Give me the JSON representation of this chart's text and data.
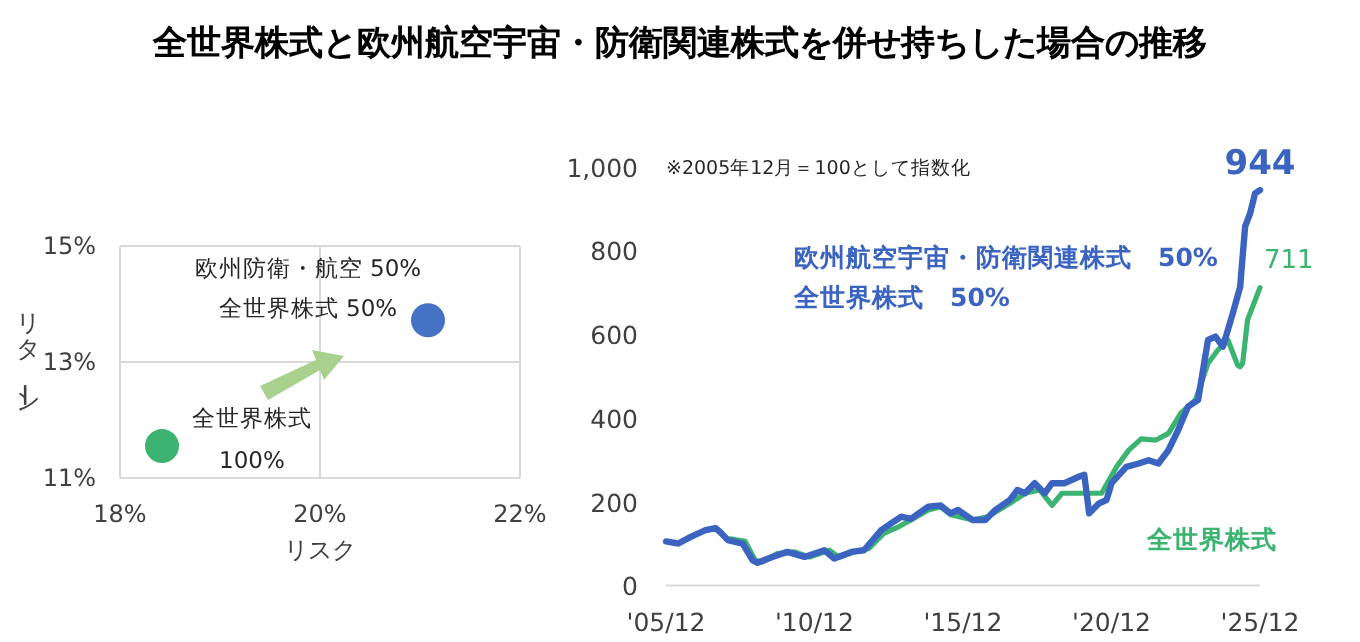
{
  "chart_data": [
    {
      "type": "scatter",
      "title": "全世界株式と欧州航空宇宙・防衛関連株式を併せ持ちした場合の推移",
      "xlabel": "リスク",
      "ylabel": "リターン",
      "xlim": [
        18,
        22
      ],
      "xticks": [
        {
          "value": 18,
          "label": "18%"
        },
        {
          "value": 20,
          "label": "20%"
        },
        {
          "value": 22,
          "label": "22%"
        }
      ],
      "ylim": [
        11,
        15
      ],
      "yticks": [
        {
          "value": 11,
          "label": "11%"
        },
        {
          "value": 13,
          "label": "13%"
        },
        {
          "value": 15,
          "label": "15%"
        }
      ],
      "grid": true,
      "marker": "circle",
      "series": [
        {
          "name": "欧州防衛・航空 50%\n全世界株式 50%",
          "color": "#4472c4",
          "x": [
            21.08
          ],
          "values": [
            13.72
          ]
        },
        {
          "name": "全世界株式\n100%",
          "color": "#3cb371",
          "x": [
            18.42
          ],
          "values": [
            11.55
          ]
        }
      ]
    },
    {
      "type": "line",
      "xlim": [
        "2005-12",
        "2025-12"
      ],
      "xticks": [
        {
          "value": "2005-12",
          "label": "'05/12"
        },
        {
          "value": "2010-12",
          "label": "'10/12"
        },
        {
          "value": "2015-12",
          "label": "'15/12"
        },
        {
          "value": "2020-12",
          "label": "'20/12"
        },
        {
          "value": "2025-12",
          "label": "'25/12"
        }
      ],
      "ylim": [
        0,
        1000
      ],
      "yticks": [
        0,
        200,
        400,
        600,
        800,
        {
          "value": 1000,
          "label": "1,000"
        }
      ],
      "annotations": [
        "※2005年12月＝100として指数化"
      ],
      "series": [
        {
          "name": "欧州航空宇宙・防衛関連株式　50%\n全世界株式　50%",
          "color": "#3a64c0",
          "x": [
            "2005-12",
            "2006-05",
            "2006-10",
            "2007-04",
            "2007-08",
            "2007-10",
            "2008-01",
            "2008-07",
            "2008-11",
            "2009-01",
            "2009-07",
            "2010-01",
            "2010-08",
            "2011-04",
            "2011-08",
            "2012-03",
            "2012-08",
            "2013-03",
            "2013-07",
            "2013-11",
            "2014-03",
            "2014-10",
            "2015-03",
            "2015-07",
            "2015-10",
            "2016-04",
            "2016-09",
            "2017-01",
            "2017-07",
            "2017-10",
            "2018-01",
            "2018-05",
            "2018-09",
            "2018-12",
            "2019-05",
            "2019-11",
            "2020-01",
            "2020-03",
            "2020-07",
            "2020-10",
            "2020-12",
            "2021-06",
            "2021-11",
            "2022-03",
            "2022-07",
            "2022-11",
            "2023-03",
            "2023-07",
            "2023-11",
            "2024-03",
            "2024-06",
            "2024-09",
            "2025-01",
            "2025-04",
            "2025-06",
            "2025-08",
            "2025-10",
            "2025-12"
          ],
          "values": [
            105,
            100,
            116,
            132,
            137,
            127,
            108,
            100,
            60,
            54,
            68,
            80,
            68,
            84,
            64,
            80,
            84,
            132,
            148,
            164,
            159,
            188,
            191,
            172,
            180,
            156,
            156,
            180,
            204,
            228,
            220,
            244,
            220,
            244,
            244,
            260,
            264,
            172,
            196,
            204,
            244,
            283,
            291,
            299,
            291,
            323,
            371,
            427,
            443,
            586,
            594,
            570,
            650,
            713,
            857,
            888,
            936,
            944
          ],
          "value_labels": [
            null,
            null,
            null,
            null,
            null,
            null,
            null,
            null,
            null,
            null,
            null,
            null,
            null,
            null,
            null,
            null,
            null,
            null,
            null,
            null,
            null,
            null,
            null,
            null,
            null,
            null,
            null,
            null,
            null,
            null,
            null,
            null,
            null,
            null,
            null,
            null,
            null,
            null,
            null,
            null,
            null,
            null,
            null,
            null,
            null,
            null,
            null,
            null,
            null,
            null,
            null,
            null,
            null,
            null,
            null,
            null,
            null,
            "944"
          ]
        },
        {
          "name": "全世界株式",
          "color": "#3cb371",
          "x": [
            "2008-02",
            "2008-08",
            "2008-12",
            "2009-03",
            "2009-09",
            "2010-04",
            "2010-10",
            "2011-06",
            "2011-10",
            "2012-04",
            "2012-10",
            "2013-04",
            "2013-10",
            "2014-03",
            "2014-10",
            "2015-03",
            "2015-07",
            "2016-04",
            "2016-10",
            "2017-07",
            "2018-01",
            "2018-07",
            "2018-12",
            "2019-04",
            "2019-11",
            "2020-08",
            "2021-02",
            "2021-07",
            "2021-12",
            "2022-06",
            "2022-11",
            "2023-04",
            "2023-10",
            "2024-03",
            "2024-07",
            "2024-11",
            "2025-03",
            "2025-04",
            "2025-05",
            "2025-07",
            "2025-12"
          ],
          "values": [
            111,
            105,
            60,
            56,
            76,
            80,
            68,
            84,
            67,
            80,
            88,
            124,
            140,
            156,
            180,
            188,
            169,
            156,
            164,
            196,
            220,
            228,
            191,
            220,
            220,
            220,
            283,
            323,
            350,
            347,
            363,
            411,
            443,
            530,
            562,
            586,
            526,
            522,
            530,
            634,
            711
          ],
          "value_labels": [
            null,
            null,
            null,
            null,
            null,
            null,
            null,
            null,
            null,
            null,
            null,
            null,
            null,
            null,
            null,
            null,
            null,
            null,
            null,
            null,
            null,
            null,
            null,
            null,
            null,
            null,
            null,
            null,
            null,
            null,
            null,
            null,
            null,
            null,
            null,
            null,
            null,
            null,
            null,
            null,
            "711"
          ]
        }
      ]
    }
  ]
}
